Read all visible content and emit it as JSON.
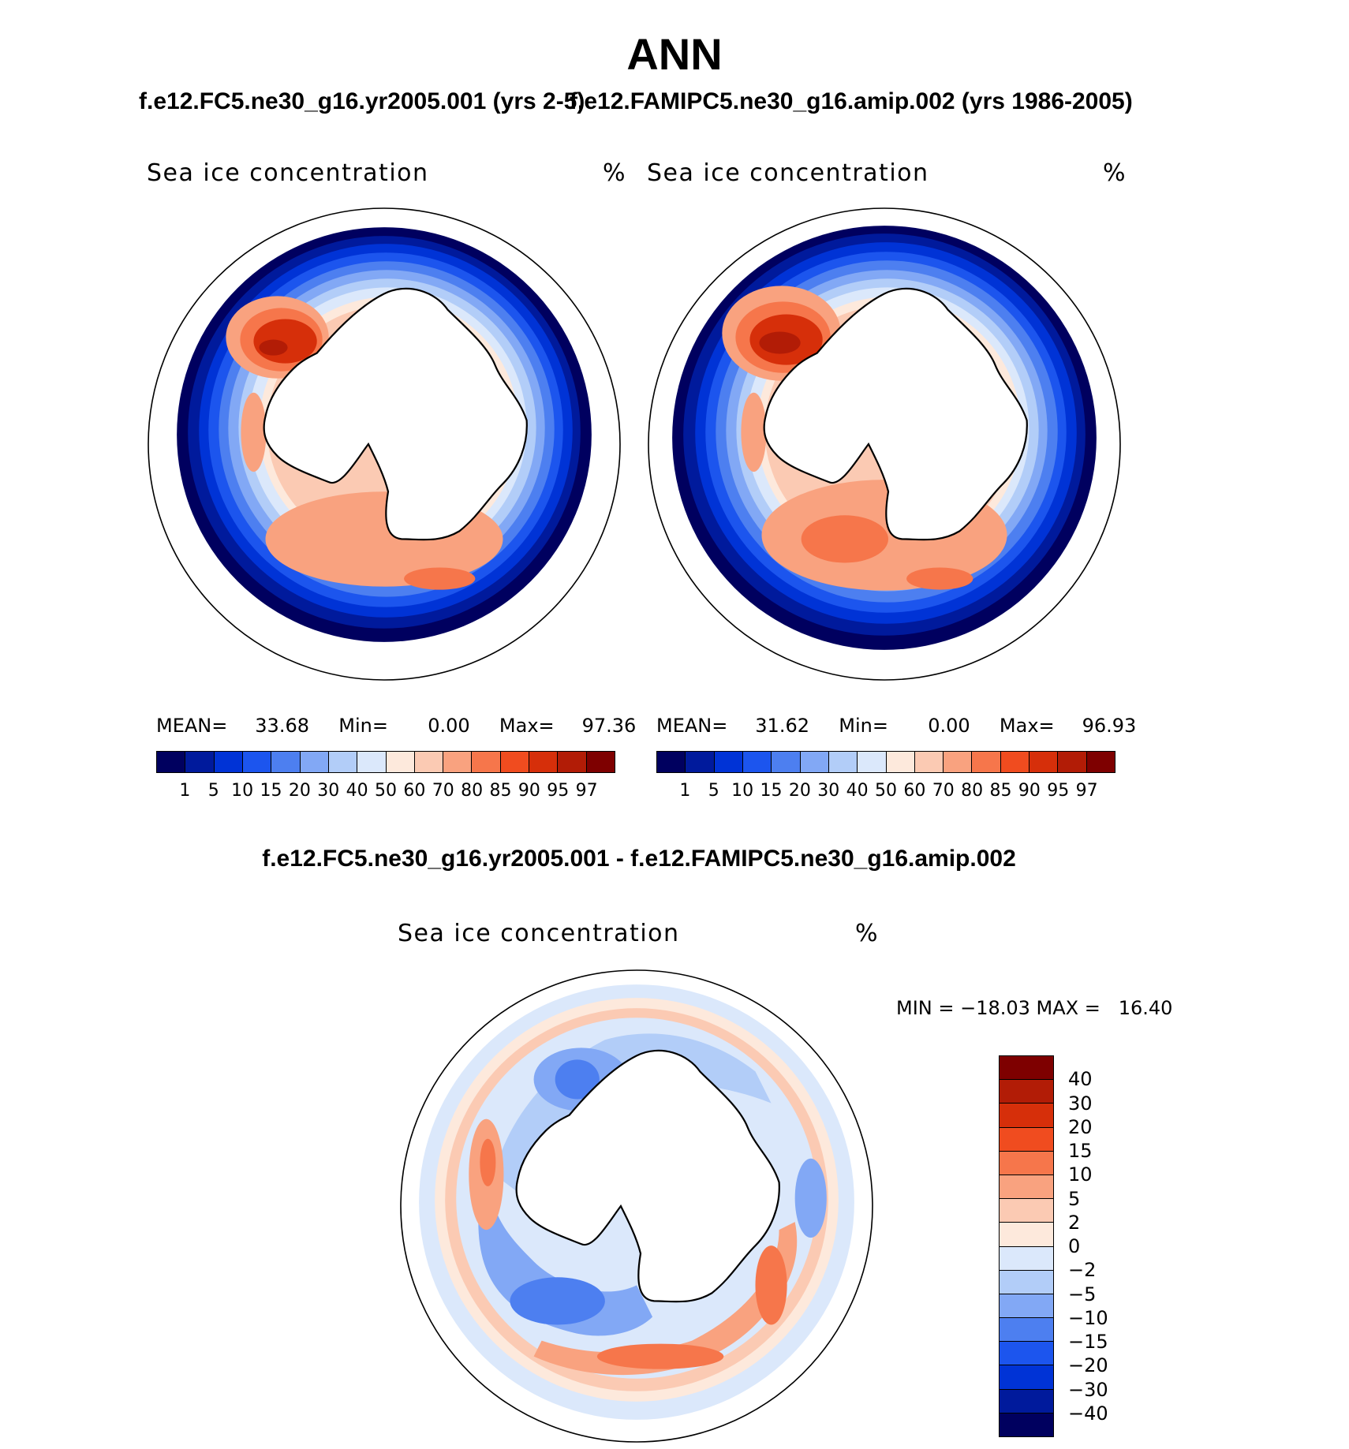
{
  "title": "ANN",
  "panels": [
    {
      "case_title": "f.e12.FC5.ne30_g16.yr2005.001 (yrs 2-5)",
      "variable": "Sea ice concentration",
      "units": "%",
      "stats": {
        "mean_label": "MEAN=",
        "mean": "33.68",
        "min_label": "Min=",
        "min": "0.00",
        "max_label": "Max=",
        "max": "97.36"
      }
    },
    {
      "case_title": "f.e12.FAMIPC5.ne30_g16.amip.002 (yrs 1986-2005)",
      "variable": "Sea ice concentration",
      "units": "%",
      "stats": {
        "mean_label": "MEAN=",
        "mean": "31.62",
        "min_label": "Min=",
        "min": "0.00",
        "max_label": "Max=",
        "max": "96.93"
      }
    }
  ],
  "colorbar": {
    "levels": [
      "1",
      "5",
      "10",
      "15",
      "20",
      "30",
      "40",
      "50",
      "60",
      "70",
      "80",
      "85",
      "90",
      "95",
      "97"
    ],
    "colors": [
      "#00005f",
      "#001a9c",
      "#0033d6",
      "#1c55ee",
      "#4d7ff0",
      "#82a8f5",
      "#b2cdf8",
      "#dbe8fb",
      "#fde9dc",
      "#fbcab3",
      "#f9a27f",
      "#f6764b",
      "#f04c1f",
      "#d62f0a",
      "#b21c06",
      "#7e0000"
    ]
  },
  "difference": {
    "title": "f.e12.FC5.ne30_g16.yr2005.001 - f.e12.FAMIPC5.ne30_g16.amip.002",
    "variable": "Sea ice concentration",
    "units": "%",
    "min_max": "MIN = −18.03 MAX =   16.40",
    "levels": [
      "40",
      "30",
      "20",
      "15",
      "10",
      "5",
      "2",
      "0",
      "−2",
      "−5",
      "−10",
      "−15",
      "−20",
      "−30",
      "−40"
    ],
    "colors": [
      "#7e0000",
      "#b21c06",
      "#d62f0a",
      "#f04c1f",
      "#f6764b",
      "#f9a27f",
      "#fbcab3",
      "#fde9dc",
      "#dbe8fb",
      "#b2cdf8",
      "#82a8f5",
      "#4d7ff0",
      "#1c55ee",
      "#0033d6",
      "#001a9c",
      "#00005f"
    ]
  }
}
